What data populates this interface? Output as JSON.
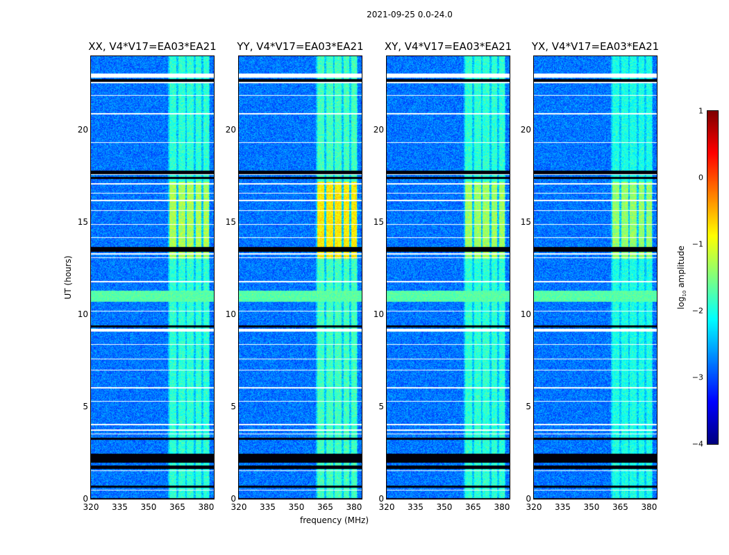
{
  "chart_data": {
    "type": "heatmap",
    "suptitle": "2021-09-25 0.0-24.0",
    "xlabel": "frequency (MHz)",
    "ylabel": "UT (hours)",
    "xlim": [
      320,
      384
    ],
    "ylim": [
      0,
      24
    ],
    "xticks": [
      "320",
      "335",
      "350",
      "365",
      "380"
    ],
    "xtick_values": [
      320,
      335,
      350,
      365,
      380
    ],
    "yticks": [
      "0",
      "5",
      "10",
      "15",
      "20"
    ],
    "ytick_values": [
      0,
      5,
      10,
      15,
      20
    ],
    "colorbar": {
      "label_prefix": "log",
      "label_sub": "10",
      "label_suffix": " amplitude",
      "range": [
        -4,
        1
      ],
      "ticks": [
        "1",
        "0",
        "−1",
        "−2",
        "−3",
        "−4"
      ],
      "tick_values": [
        1,
        0,
        -1,
        -2,
        -3,
        -4
      ],
      "colormap": "jet"
    },
    "background_log_amplitude": -2.8,
    "rfi_columns_mhz": [
      [
        361,
        364.5
      ],
      [
        365.5,
        369
      ],
      [
        370,
        373.5
      ],
      [
        374.5,
        377.5
      ],
      [
        378.5,
        381.5
      ]
    ],
    "broadband_rfi_hours": [
      10.7,
      11.3
    ],
    "broadband_rfi_level": -1.7,
    "flagged_white_hours": [
      [
        22.85,
        23.05
      ],
      [
        22.55,
        22.6
      ],
      [
        21.85,
        21.9
      ],
      [
        20.85,
        20.9
      ],
      [
        19.3,
        19.35
      ],
      [
        17.55,
        17.6
      ],
      [
        17.05,
        17.1
      ],
      [
        16.55,
        16.6
      ],
      [
        16.15,
        16.2
      ],
      [
        15.6,
        15.65
      ],
      [
        14.85,
        14.9
      ],
      [
        14.15,
        14.2
      ],
      [
        13.25,
        13.3
      ],
      [
        13.05,
        13.1
      ],
      [
        11.75,
        11.8
      ],
      [
        10.15,
        10.2
      ],
      [
        9.05,
        9.2
      ],
      [
        8.35,
        8.4
      ],
      [
        7.55,
        7.6
      ],
      [
        6.95,
        7.0
      ],
      [
        6.0,
        6.05
      ],
      [
        5.25,
        5.3
      ],
      [
        4.0,
        4.05
      ],
      [
        3.7,
        3.75
      ],
      [
        3.5,
        3.55
      ],
      [
        1.5,
        1.55
      ],
      [
        0.45,
        0.5
      ]
    ],
    "flagged_black_hours": [
      [
        22.6,
        22.75
      ],
      [
        17.6,
        17.8
      ],
      [
        17.35,
        17.45
      ],
      [
        13.4,
        13.65
      ],
      [
        9.3,
        9.4
      ],
      [
        3.2,
        3.3
      ],
      [
        1.95,
        2.45
      ],
      [
        1.6,
        1.8
      ],
      [
        0.6,
        0.7
      ],
      [
        0.0,
        0.05
      ]
    ],
    "panels": [
      {
        "title": "XX, V4*V17=EA03*EA21",
        "rfi_level": -1.9,
        "strong_hours": [
          13.0,
          17.2
        ],
        "strong_level": -1.3
      },
      {
        "title": "YY, V4*V17=EA03*EA21",
        "rfi_level": -1.8,
        "strong_hours": [
          13.0,
          17.2
        ],
        "strong_level": -0.8
      },
      {
        "title": "XY, V4*V17=EA03*EA21",
        "rfi_level": -1.9,
        "strong_hours": [
          13.0,
          17.2
        ],
        "strong_level": -1.35
      },
      {
        "title": "YX, V4*V17=EA03*EA21",
        "rfi_level": -2.0,
        "strong_hours": [
          13.0,
          17.2
        ],
        "strong_level": -1.4
      }
    ]
  }
}
